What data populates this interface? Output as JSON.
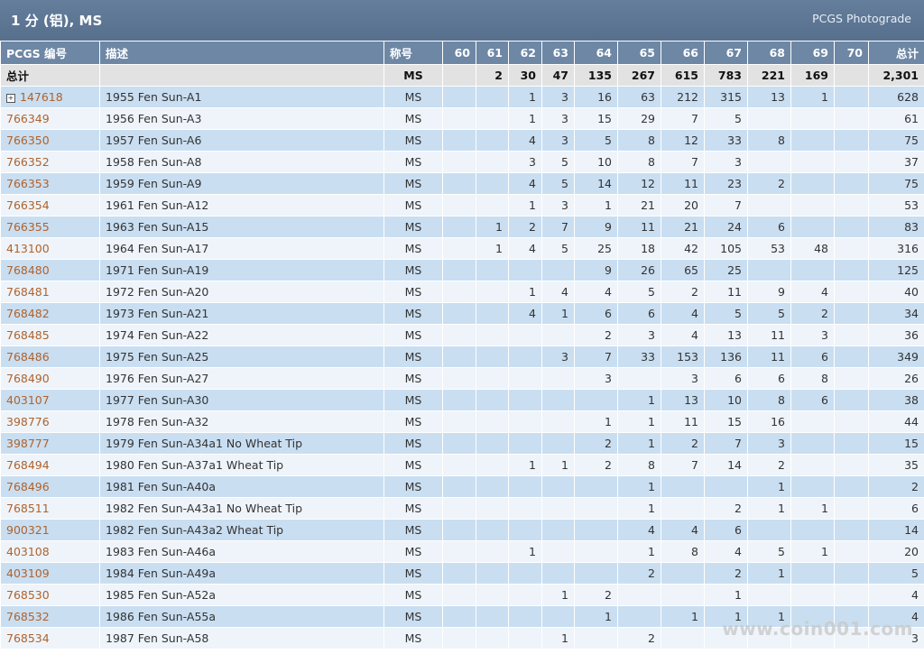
{
  "header": {
    "title": "1 分 (铝), MS",
    "brand": "PCGS Photograde"
  },
  "table": {
    "columns": [
      "PCGS 编号",
      "描述",
      "称号",
      "60",
      "61",
      "62",
      "63",
      "64",
      "65",
      "66",
      "67",
      "68",
      "69",
      "70",
      "总计"
    ],
    "total_row": {
      "id": "总计",
      "description": null,
      "designation": "MS",
      "grades": [
        null,
        "2",
        "30",
        "47",
        "135",
        "267",
        "615",
        "783",
        "221",
        "169",
        null
      ],
      "total": "2,301"
    },
    "rows": [
      {
        "id": "147618",
        "description": "1955 Fen Sun-A1",
        "designation": "MS",
        "grades": [
          null,
          null,
          "1",
          "3",
          "16",
          "63",
          "212",
          "315",
          "13",
          "1",
          null
        ],
        "total": "628"
      },
      {
        "id": "766349",
        "description": "1956 Fen Sun-A3",
        "designation": "MS",
        "grades": [
          null,
          null,
          "1",
          "3",
          "15",
          "29",
          "7",
          "5",
          null,
          null,
          null
        ],
        "total": "61"
      },
      {
        "id": "766350",
        "description": "1957 Fen Sun-A6",
        "designation": "MS",
        "grades": [
          null,
          null,
          "4",
          "3",
          "5",
          "8",
          "12",
          "33",
          "8",
          null,
          null
        ],
        "total": "75"
      },
      {
        "id": "766352",
        "description": "1958 Fen Sun-A8",
        "designation": "MS",
        "grades": [
          null,
          null,
          "3",
          "5",
          "10",
          "8",
          "7",
          "3",
          null,
          null,
          null
        ],
        "total": "37"
      },
      {
        "id": "766353",
        "description": "1959 Fen Sun-A9",
        "designation": "MS",
        "grades": [
          null,
          null,
          "4",
          "5",
          "14",
          "12",
          "11",
          "23",
          "2",
          null,
          null
        ],
        "total": "75"
      },
      {
        "id": "766354",
        "description": "1961 Fen Sun-A12",
        "designation": "MS",
        "grades": [
          null,
          null,
          "1",
          "3",
          "1",
          "21",
          "20",
          "7",
          null,
          null,
          null
        ],
        "total": "53"
      },
      {
        "id": "766355",
        "description": "1963 Fen Sun-A15",
        "designation": "MS",
        "grades": [
          null,
          "1",
          "2",
          "7",
          "9",
          "11",
          "21",
          "24",
          "6",
          null,
          null
        ],
        "total": "83"
      },
      {
        "id": "413100",
        "description": "1964 Fen Sun-A17",
        "designation": "MS",
        "grades": [
          null,
          "1",
          "4",
          "5",
          "25",
          "18",
          "42",
          "105",
          "53",
          "48",
          null
        ],
        "total": "316"
      },
      {
        "id": "768480",
        "description": "1971 Fen Sun-A19",
        "designation": "MS",
        "grades": [
          null,
          null,
          null,
          null,
          "9",
          "26",
          "65",
          "25",
          null,
          null,
          null
        ],
        "total": "125"
      },
      {
        "id": "768481",
        "description": "1972 Fen Sun-A20",
        "designation": "MS",
        "grades": [
          null,
          null,
          "1",
          "4",
          "4",
          "5",
          "2",
          "11",
          "9",
          "4",
          null
        ],
        "total": "40"
      },
      {
        "id": "768482",
        "description": "1973 Fen Sun-A21",
        "designation": "MS",
        "grades": [
          null,
          null,
          "4",
          "1",
          "6",
          "6",
          "4",
          "5",
          "5",
          "2",
          null
        ],
        "total": "34"
      },
      {
        "id": "768485",
        "description": "1974 Fen Sun-A22",
        "designation": "MS",
        "grades": [
          null,
          null,
          null,
          null,
          "2",
          "3",
          "4",
          "13",
          "11",
          "3",
          null
        ],
        "total": "36"
      },
      {
        "id": "768486",
        "description": "1975 Fen Sun-A25",
        "designation": "MS",
        "grades": [
          null,
          null,
          null,
          "3",
          "7",
          "33",
          "153",
          "136",
          "11",
          "6",
          null
        ],
        "total": "349"
      },
      {
        "id": "768490",
        "description": "1976 Fen Sun-A27",
        "designation": "MS",
        "grades": [
          null,
          null,
          null,
          null,
          "3",
          null,
          "3",
          "6",
          "6",
          "8",
          null
        ],
        "total": "26"
      },
      {
        "id": "403107",
        "description": "1977 Fen Sun-A30",
        "designation": "MS",
        "grades": [
          null,
          null,
          null,
          null,
          null,
          "1",
          "13",
          "10",
          "8",
          "6",
          null
        ],
        "total": "38"
      },
      {
        "id": "398776",
        "description": "1978 Fen Sun-A32",
        "designation": "MS",
        "grades": [
          null,
          null,
          null,
          null,
          "1",
          "1",
          "11",
          "15",
          "16",
          null,
          null
        ],
        "total": "44"
      },
      {
        "id": "398777",
        "description": "1979 Fen Sun-A34a1 No Wheat Tip",
        "designation": "MS",
        "grades": [
          null,
          null,
          null,
          null,
          "2",
          "1",
          "2",
          "7",
          "3",
          null,
          null
        ],
        "total": "15"
      },
      {
        "id": "768494",
        "description": "1980 Fen Sun-A37a1 Wheat Tip",
        "designation": "MS",
        "grades": [
          null,
          null,
          "1",
          "1",
          "2",
          "8",
          "7",
          "14",
          "2",
          null,
          null
        ],
        "total": "35"
      },
      {
        "id": "768496",
        "description": "1981 Fen Sun-A40a",
        "designation": "MS",
        "grades": [
          null,
          null,
          null,
          null,
          null,
          "1",
          null,
          null,
          "1",
          null,
          null
        ],
        "total": "2"
      },
      {
        "id": "768511",
        "description": "1982 Fen Sun-A43a1 No Wheat Tip",
        "designation": "MS",
        "grades": [
          null,
          null,
          null,
          null,
          null,
          "1",
          null,
          "2",
          "1",
          "1",
          null
        ],
        "total": "6"
      },
      {
        "id": "900321",
        "description": "1982 Fen Sun-A43a2 Wheat Tip",
        "designation": "MS",
        "grades": [
          null,
          null,
          null,
          null,
          null,
          "4",
          "4",
          "6",
          null,
          null,
          null
        ],
        "total": "14"
      },
      {
        "id": "403108",
        "description": "1983 Fen Sun-A46a",
        "designation": "MS",
        "grades": [
          null,
          null,
          "1",
          null,
          null,
          "1",
          "8",
          "4",
          "5",
          "1",
          null
        ],
        "total": "20"
      },
      {
        "id": "403109",
        "description": "1984 Fen Sun-A49a",
        "designation": "MS",
        "grades": [
          null,
          null,
          null,
          null,
          null,
          "2",
          null,
          "2",
          "1",
          null,
          null
        ],
        "total": "5"
      },
      {
        "id": "768530",
        "description": "1985 Fen Sun-A52a",
        "designation": "MS",
        "grades": [
          null,
          null,
          null,
          "1",
          "2",
          null,
          null,
          "1",
          null,
          null,
          null
        ],
        "total": "4"
      },
      {
        "id": "768532",
        "description": "1986 Fen Sun-A55a",
        "designation": "MS",
        "grades": [
          null,
          null,
          null,
          null,
          "1",
          null,
          "1",
          "1",
          "1",
          null,
          null
        ],
        "total": "4"
      },
      {
        "id": "768534",
        "description": "1987 Fen Sun-A58",
        "designation": "MS",
        "grades": [
          null,
          null,
          null,
          "1",
          null,
          "2",
          null,
          null,
          null,
          null,
          null
        ],
        "total": "3"
      }
    ]
  },
  "watermark": "www.coin001.com"
}
